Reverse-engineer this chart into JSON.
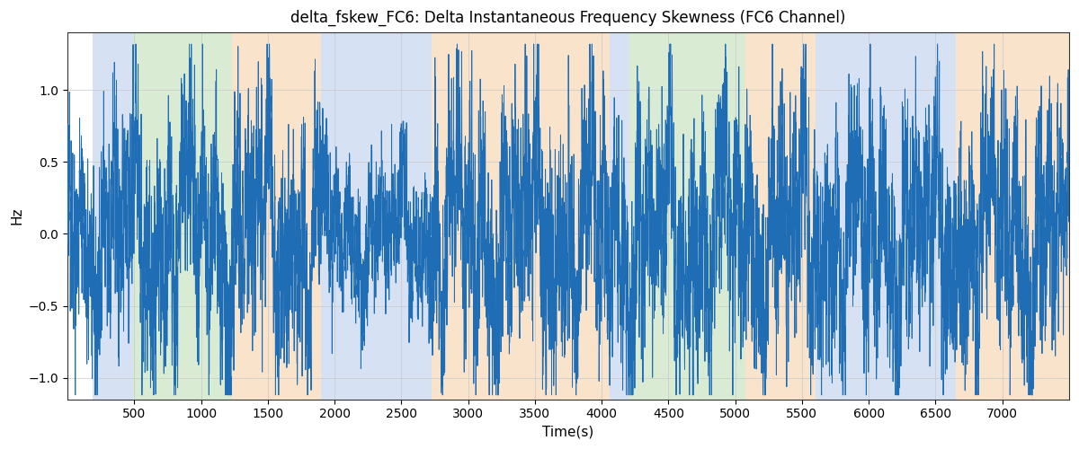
{
  "title": "delta_fskew_FC6: Delta Instantaneous Frequency Skewness (FC6 Channel)",
  "xlabel": "Time(s)",
  "ylabel": "Hz",
  "xlim": [
    0,
    7500
  ],
  "ylim": [
    -1.15,
    1.4
  ],
  "line_color": "#1f6eb5",
  "line_width": 0.7,
  "background_color": "#ffffff",
  "grid_color": "#c8c8c8",
  "figsize": [
    12,
    5
  ],
  "dpi": 100,
  "seed": 42,
  "n_points": 7400,
  "colored_bands": [
    {
      "xmin": 190,
      "xmax": 490,
      "color": "#aec6e8",
      "alpha": 0.5
    },
    {
      "xmin": 490,
      "xmax": 1230,
      "color": "#b5d9a8",
      "alpha": 0.5
    },
    {
      "xmin": 1230,
      "xmax": 1900,
      "color": "#f5c899",
      "alpha": 0.5
    },
    {
      "xmin": 1900,
      "xmax": 2080,
      "color": "#aec6e8",
      "alpha": 0.5
    },
    {
      "xmin": 2080,
      "xmax": 2730,
      "color": "#aec6e8",
      "alpha": 0.5
    },
    {
      "xmin": 2730,
      "xmax": 4060,
      "color": "#f5c899",
      "alpha": 0.5
    },
    {
      "xmin": 4060,
      "xmax": 4210,
      "color": "#aec6e8",
      "alpha": 0.5
    },
    {
      "xmin": 4210,
      "xmax": 5080,
      "color": "#b5d9a8",
      "alpha": 0.5
    },
    {
      "xmin": 5080,
      "xmax": 5600,
      "color": "#f5c899",
      "alpha": 0.5
    },
    {
      "xmin": 5600,
      "xmax": 6650,
      "color": "#aec6e8",
      "alpha": 0.5
    },
    {
      "xmin": 6650,
      "xmax": 7500,
      "color": "#f5c899",
      "alpha": 0.5
    }
  ],
  "xticks": [
    500,
    1000,
    1500,
    2000,
    2500,
    3000,
    3500,
    4000,
    4500,
    5000,
    5500,
    6000,
    6500,
    7000
  ],
  "yticks": [
    -1.0,
    -0.5,
    0.0,
    0.5,
    1.0
  ]
}
